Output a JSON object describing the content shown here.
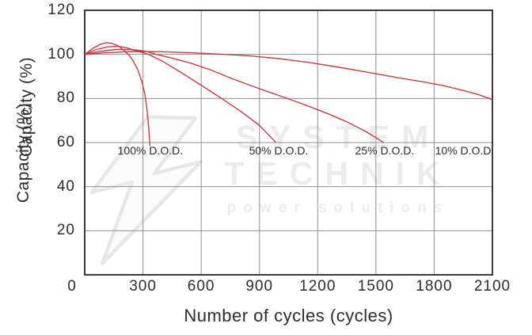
{
  "chart_data": {
    "type": "line",
    "title": "",
    "xlabel": "Number of cycles (cycles)",
    "ylabel": "Capacity (%)",
    "ylabel_note": "y-axis label is printed twice, overlapping, in the source image",
    "xlim": [
      0,
      2100
    ],
    "ylim": [
      0,
      120
    ],
    "xticks": [
      0,
      300,
      600,
      900,
      1200,
      1500,
      1800,
      2100
    ],
    "yticks": [
      20,
      40,
      60,
      80,
      100,
      120
    ],
    "grid": true,
    "legend_position": "none",
    "series": [
      {
        "name": "100% D.O.D.",
        "points": [
          [
            0,
            100
          ],
          [
            40,
            102.6
          ],
          [
            80,
            104.6
          ],
          [
            110,
            105.3
          ],
          [
            140,
            105
          ],
          [
            170,
            104
          ],
          [
            200,
            102
          ],
          [
            225,
            100
          ],
          [
            250,
            97
          ],
          [
            275,
            92.8
          ],
          [
            295,
            87.5
          ],
          [
            310,
            82
          ],
          [
            322,
            74
          ],
          [
            330,
            66.5
          ],
          [
            336,
            58.5
          ]
        ]
      },
      {
        "name": "50% D.O.D.",
        "points": [
          [
            0,
            100
          ],
          [
            60,
            102.2
          ],
          [
            120,
            103.4
          ],
          [
            170,
            103.7
          ],
          [
            220,
            102.9
          ],
          [
            280,
            101.2
          ],
          [
            330,
            100
          ],
          [
            400,
            96.9
          ],
          [
            500,
            91.6
          ],
          [
            600,
            86
          ],
          [
            700,
            80.3
          ],
          [
            800,
            74.4
          ],
          [
            900,
            67.8
          ],
          [
            985,
            60
          ]
        ]
      },
      {
        "name": "25% D.O.D.",
        "points": [
          [
            0,
            100
          ],
          [
            80,
            101.4
          ],
          [
            160,
            102.2
          ],
          [
            240,
            102.2
          ],
          [
            310,
            101.5
          ],
          [
            370,
            100
          ],
          [
            450,
            98.3
          ],
          [
            550,
            95.9
          ],
          [
            650,
            92.9
          ],
          [
            750,
            89.3
          ],
          [
            850,
            86
          ],
          [
            950,
            82.9
          ],
          [
            1050,
            79.8
          ],
          [
            1150,
            76.6
          ],
          [
            1250,
            73.2
          ],
          [
            1350,
            69.4
          ],
          [
            1450,
            64.9
          ],
          [
            1540,
            60
          ]
        ]
      },
      {
        "name": "10% D.O.D.",
        "points": [
          [
            0,
            100
          ],
          [
            100,
            100.7
          ],
          [
            250,
            101.3
          ],
          [
            400,
            101.2
          ],
          [
            550,
            100.7
          ],
          [
            700,
            100.1
          ],
          [
            850,
            99.3
          ],
          [
            1000,
            98.1
          ],
          [
            1150,
            96.4
          ],
          [
            1300,
            94.3
          ],
          [
            1450,
            92
          ],
          [
            1600,
            89.6
          ],
          [
            1750,
            87.4
          ],
          [
            1850,
            85.8
          ],
          [
            1950,
            83.6
          ],
          [
            2025,
            81.8
          ],
          [
            2100,
            79.5
          ]
        ]
      }
    ],
    "annotations": [
      {
        "text": "100% D.O.D.",
        "x": 338,
        "y": 56.5
      },
      {
        "text": "50% D.O.D.",
        "x": 999,
        "y": 56.5
      },
      {
        "text": "25% D.O.D.",
        "x": 1545,
        "y": 56.5
      },
      {
        "text": "10% D.O.D.",
        "x": 1957,
        "y": 56.5
      }
    ]
  },
  "watermark": {
    "line1": "SYSTEM",
    "line2": "TECHNIK",
    "line3": "power solutions"
  },
  "colors": {
    "curve": "#bf4045",
    "grid": "#8f8f8f",
    "border": "#3b3b3b",
    "text": "#2d2d2d",
    "watermark": "#ececec"
  }
}
